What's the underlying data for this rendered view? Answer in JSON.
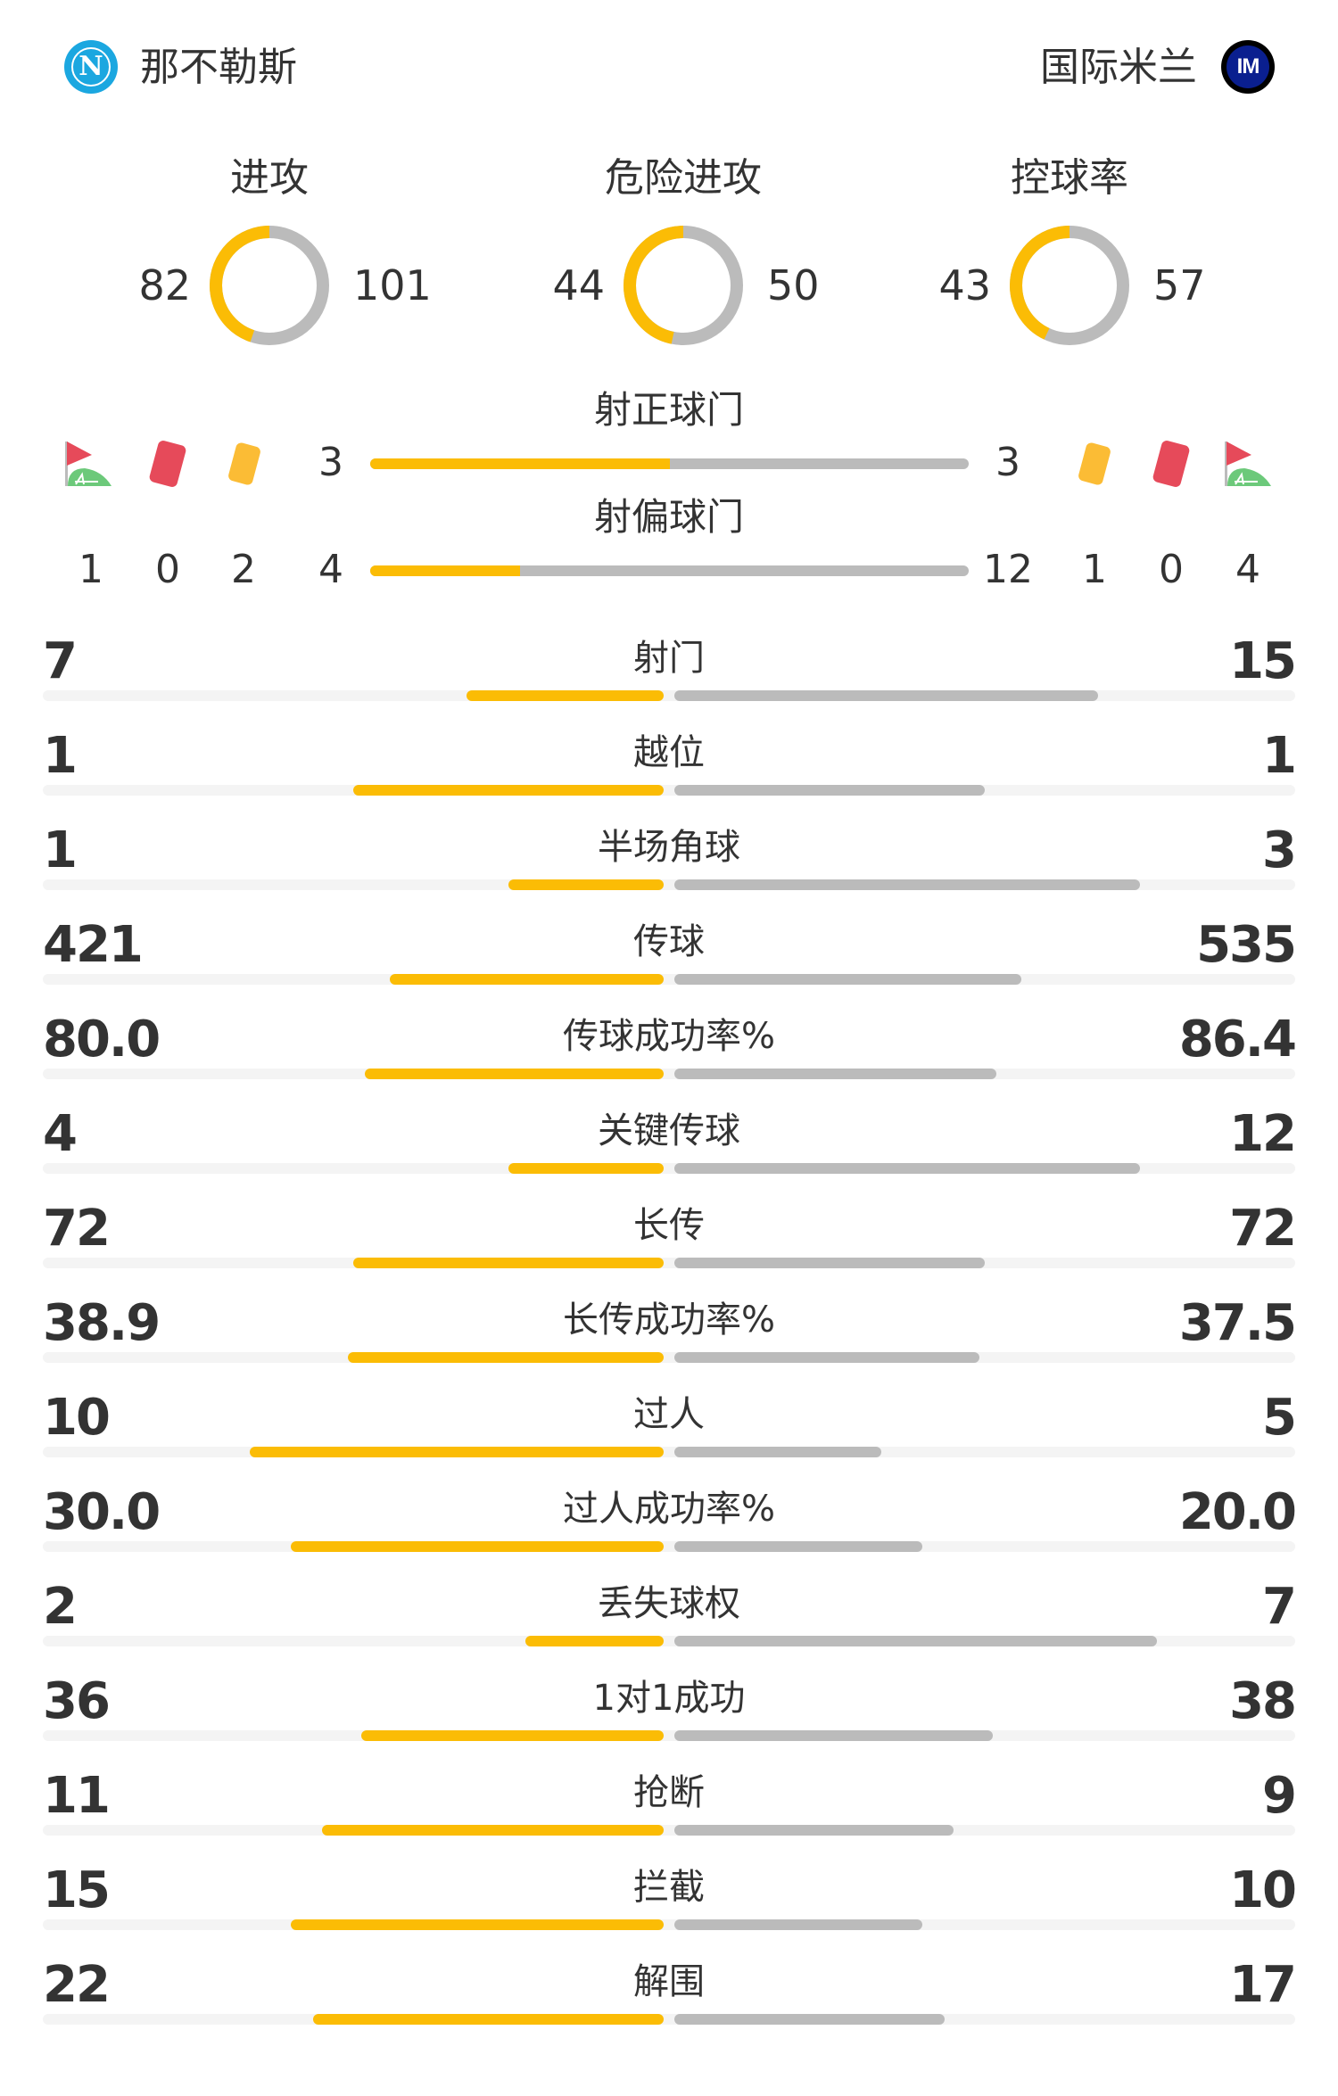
{
  "home": {
    "name": "那不勒斯",
    "logo": "napoli-logo",
    "color": "#1ba7e0"
  },
  "away": {
    "name": "国际米兰",
    "logo": "inter-logo",
    "color": "#0a1f8f"
  },
  "colors": {
    "home_bar": "#fbbc05",
    "away_bar": "#bbbbbb",
    "track": "#f4f4f4",
    "text": "#333333"
  },
  "donuts": [
    {
      "label": "进攻",
      "home": 82,
      "away": 101
    },
    {
      "label": "危险进攻",
      "home": 44,
      "away": 50
    },
    {
      "label": "控球率",
      "home": 43,
      "away": 57
    }
  ],
  "shots_on": {
    "label": "射正球门",
    "home": 3,
    "away": 3
  },
  "shots_off": {
    "label": "射偏球门",
    "home": 4,
    "away": 12
  },
  "discipline": {
    "icons": [
      "corner-flag-icon",
      "red-card-icon",
      "yellow-card-icon"
    ],
    "home": {
      "corners": 1,
      "red": 0,
      "yellow": 2
    },
    "away": {
      "yellow": 1,
      "red": 0,
      "corners": 4
    }
  },
  "stats": [
    {
      "label": "射门",
      "home": "7",
      "away": "15"
    },
    {
      "label": "越位",
      "home": "1",
      "away": "1"
    },
    {
      "label": "半场角球",
      "home": "1",
      "away": "3"
    },
    {
      "label": "传球",
      "home": "421",
      "away": "535"
    },
    {
      "label": "传球成功率%",
      "home": "80.0",
      "away": "86.4"
    },
    {
      "label": "关键传球",
      "home": "4",
      "away": "12"
    },
    {
      "label": "长传",
      "home": "72",
      "away": "72"
    },
    {
      "label": "长传成功率%",
      "home": "38.9",
      "away": "37.5"
    },
    {
      "label": "过人",
      "home": "10",
      "away": "5"
    },
    {
      "label": "过人成功率%",
      "home": "30.0",
      "away": "20.0"
    },
    {
      "label": "丢失球权",
      "home": "2",
      "away": "7"
    },
    {
      "label": "1对1成功",
      "home": "36",
      "away": "38"
    },
    {
      "label": "抢断",
      "home": "11",
      "away": "9"
    },
    {
      "label": "拦截",
      "home": "15",
      "away": "10"
    },
    {
      "label": "解围",
      "home": "22",
      "away": "17"
    }
  ]
}
